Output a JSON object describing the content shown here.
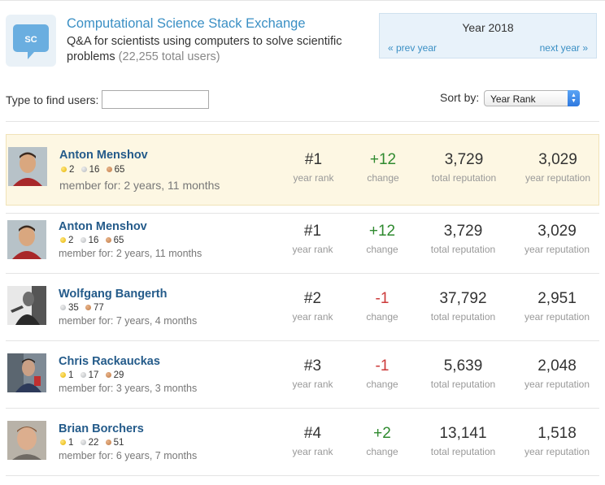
{
  "site": {
    "icon_text": "SC",
    "title": "Computational Science Stack Exchange",
    "description": "Q&A for scientists using computers to solve scientific problems",
    "total_users": "(22,255 total users)"
  },
  "year_nav": {
    "label": "Year 2018",
    "prev": "« prev year",
    "next": "next year »"
  },
  "filter": {
    "label": "Type to find users:",
    "value": "",
    "placeholder": ""
  },
  "sort": {
    "label": "Sort by:",
    "selected": "Year Rank"
  },
  "users": [
    {
      "name": "Anton Menshov",
      "gold": "2",
      "silver": "16",
      "bronze": "65",
      "member_for": "member for: 2 years, 11 months",
      "rank": "#1",
      "rank_label": "year rank",
      "change": "+12",
      "change_label": "change",
      "total_rep": "3,729",
      "total_rep_label": "total reputation",
      "year_rep": "3,029",
      "year_rep_label": "year reputation"
    },
    {
      "name": "Anton Menshov",
      "gold": "2",
      "silver": "16",
      "bronze": "65",
      "member_for": "member for: 2 years, 11 months",
      "rank": "#1",
      "rank_label": "year rank",
      "change": "+12",
      "change_label": "change",
      "total_rep": "3,729",
      "total_rep_label": "total reputation",
      "year_rep": "3,029",
      "year_rep_label": "year reputation"
    },
    {
      "name": "Wolfgang Bangerth",
      "silver": "35",
      "bronze": "77",
      "member_for": "member for: 7 years, 4 months",
      "rank": "#2",
      "rank_label": "year rank",
      "change": "-1",
      "change_label": "change",
      "total_rep": "37,792",
      "total_rep_label": "total reputation",
      "year_rep": "2,951",
      "year_rep_label": "year reputation"
    },
    {
      "name": "Chris Rackauckas",
      "gold": "1",
      "silver": "17",
      "bronze": "29",
      "member_for": "member for: 3 years, 3 months",
      "rank": "#3",
      "rank_label": "year rank",
      "change": "-1",
      "change_label": "change",
      "total_rep": "5,639",
      "total_rep_label": "total reputation",
      "year_rep": "2,048",
      "year_rep_label": "year reputation"
    },
    {
      "name": "Brian Borchers",
      "gold": "1",
      "silver": "22",
      "bronze": "51",
      "member_for": "member for: 6 years, 7 months",
      "rank": "#4",
      "rank_label": "year rank",
      "change": "+2",
      "change_label": "change",
      "total_rep": "13,141",
      "total_rep_label": "total reputation",
      "year_rep": "1,518",
      "year_rep_label": "year reputation"
    }
  ],
  "colors": {
    "link": "#3a8fc4",
    "username": "#245b8a",
    "positive_change": "#2f8a2f",
    "negative_change": "#cc3a3a",
    "highlight_row": "#fdf7e3",
    "year_box": "#e8f2fa"
  }
}
